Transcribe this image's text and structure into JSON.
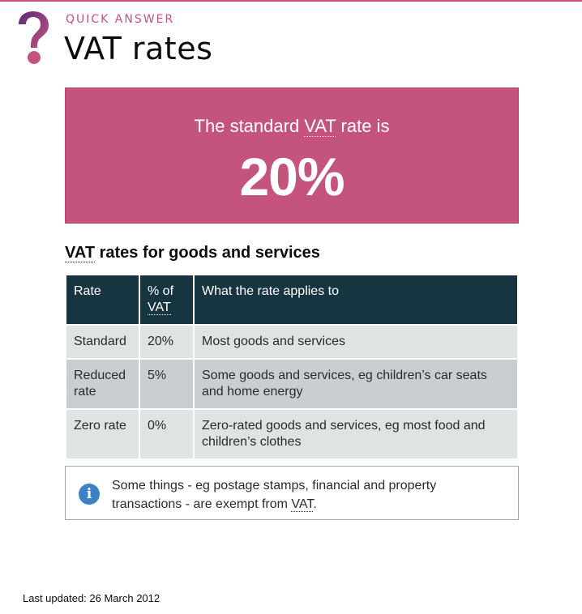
{
  "header": {
    "eyebrow": "QUICK ANSWER",
    "title": "VAT rates",
    "icon": "question-mark-icon",
    "accent_color": "#c4547e"
  },
  "highlight": {
    "lead_prefix": "The standard ",
    "lead_abbr": "VAT",
    "lead_suffix": " rate is",
    "value": "20%",
    "background_color": "#c4547e"
  },
  "section": {
    "heading_abbr": "VAT",
    "heading_rest": " rates for goods and services"
  },
  "table": {
    "header_color": "#173540",
    "headers": {
      "rate": "Rate",
      "percent_prefix": "% of",
      "percent_abbr": "VAT",
      "applies": "What the rate applies to"
    },
    "rows": [
      {
        "rate": "Standard",
        "percent": "20%",
        "applies": "Most goods and services"
      },
      {
        "rate": "Reduced rate",
        "percent": "5%",
        "applies": "Some goods and services, eg children’s car seats and home energy"
      },
      {
        "rate": "Zero rate",
        "percent": "0%",
        "applies": "Zero-rated goods and services, eg most food and children’s clothes"
      }
    ]
  },
  "info_box": {
    "icon": "info-icon",
    "text_prefix": "Some things - eg postage stamps, financial and property transactions - are exempt from ",
    "text_abbr": "VAT",
    "text_suffix": "."
  },
  "footer": {
    "last_updated": "Last updated: 26 March 2012"
  }
}
